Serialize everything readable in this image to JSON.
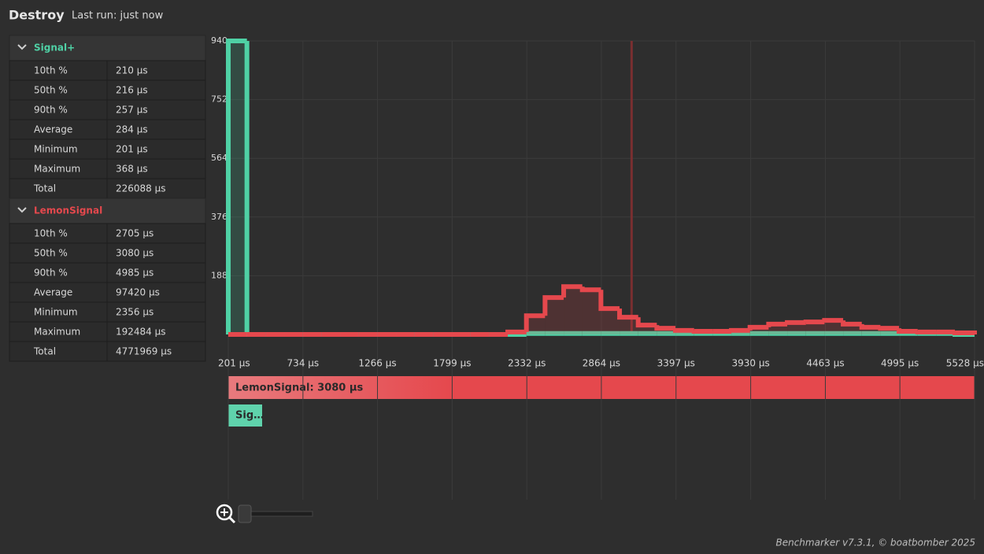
{
  "header": {
    "title": "Destroy",
    "subtitle": "Last run: just now"
  },
  "groups": [
    {
      "name": "Signal+",
      "rows": [
        [
          "10th %",
          "210 µs"
        ],
        [
          "50th %",
          "216 µs"
        ],
        [
          "90th %",
          "257 µs"
        ],
        [
          "Average",
          "284 µs"
        ],
        [
          "Minimum",
          "201 µs"
        ],
        [
          "Maximum",
          "368 µs"
        ],
        [
          "Total",
          "226088 µs"
        ]
      ]
    },
    {
      "name": "LemonSignal",
      "rows": [
        [
          "10th %",
          "2705 µs"
        ],
        [
          "50th %",
          "3080 µs"
        ],
        [
          "90th %",
          "4985 µs"
        ],
        [
          "Average",
          "97420 µs"
        ],
        [
          "Minimum",
          "2356 µs"
        ],
        [
          "Maximum",
          "192484 µs"
        ],
        [
          "Total",
          "4771969 µs"
        ]
      ]
    }
  ],
  "chart_data": {
    "type": "histogram",
    "xlim": [
      201,
      5528
    ],
    "xticks": [
      {
        "value": 201,
        "label": "201 µs"
      },
      {
        "value": 734,
        "label": "734 µs"
      },
      {
        "value": 1266,
        "label": "1266 µs"
      },
      {
        "value": 1799,
        "label": "1799 µs"
      },
      {
        "value": 2332,
        "label": "2332 µs"
      },
      {
        "value": 2864,
        "label": "2864 µs"
      },
      {
        "value": 3397,
        "label": "3397 µs"
      },
      {
        "value": 3930,
        "label": "3930 µs"
      },
      {
        "value": 4463,
        "label": "4463 µs"
      },
      {
        "value": 4995,
        "label": "4995 µs"
      },
      {
        "value": 5528,
        "label": "5528 µs"
      }
    ],
    "ylim": [
      0,
      940
    ],
    "yticks": [
      188,
      376,
      564,
      752,
      940
    ],
    "grid": true,
    "bins": [
      201,
      334,
      467,
      600,
      733,
      866,
      999,
      1132,
      1265,
      1398,
      1531,
      1664,
      1797,
      1930,
      2063,
      2196,
      2329,
      2462,
      2595,
      2728,
      2861,
      2994,
      3127,
      3260,
      3393,
      3526,
      3659,
      3792,
      3925,
      4058,
      4191,
      4324,
      4457,
      4590,
      4723,
      4856,
      4989,
      5122,
      5255,
      5388,
      5528
    ],
    "series": [
      {
        "name": "Signal+",
        "color": "#4fd1a5",
        "values": [
          940,
          0,
          0,
          0,
          0,
          0,
          0,
          0,
          0,
          0,
          0,
          0,
          0,
          0,
          0,
          0,
          3,
          3,
          3,
          3,
          3,
          3,
          3,
          3,
          3,
          3,
          3,
          3,
          3,
          3,
          3,
          3,
          3,
          3,
          3,
          3,
          3,
          3,
          3,
          0
        ]
      },
      {
        "name": "LemonSignal",
        "color": "#e5484d",
        "values": [
          0,
          0,
          0,
          0,
          0,
          0,
          0,
          0,
          0,
          0,
          0,
          0,
          0,
          0,
          0,
          8,
          60,
          118,
          153,
          143,
          83,
          55,
          30,
          20,
          13,
          10,
          10,
          13,
          23,
          33,
          38,
          40,
          45,
          33,
          23,
          20,
          10,
          8,
          8,
          5
        ]
      }
    ],
    "marker": {
      "value": 3080,
      "color": "#7a2f30"
    }
  },
  "bars": [
    {
      "label": "LemonSignal: 3080 µs",
      "color": "#e5484d"
    },
    {
      "label": "Sig…",
      "color": "#5fd3ac"
    }
  ],
  "footer": "Benchmarker v7.3.1, © boatbomber 2025"
}
